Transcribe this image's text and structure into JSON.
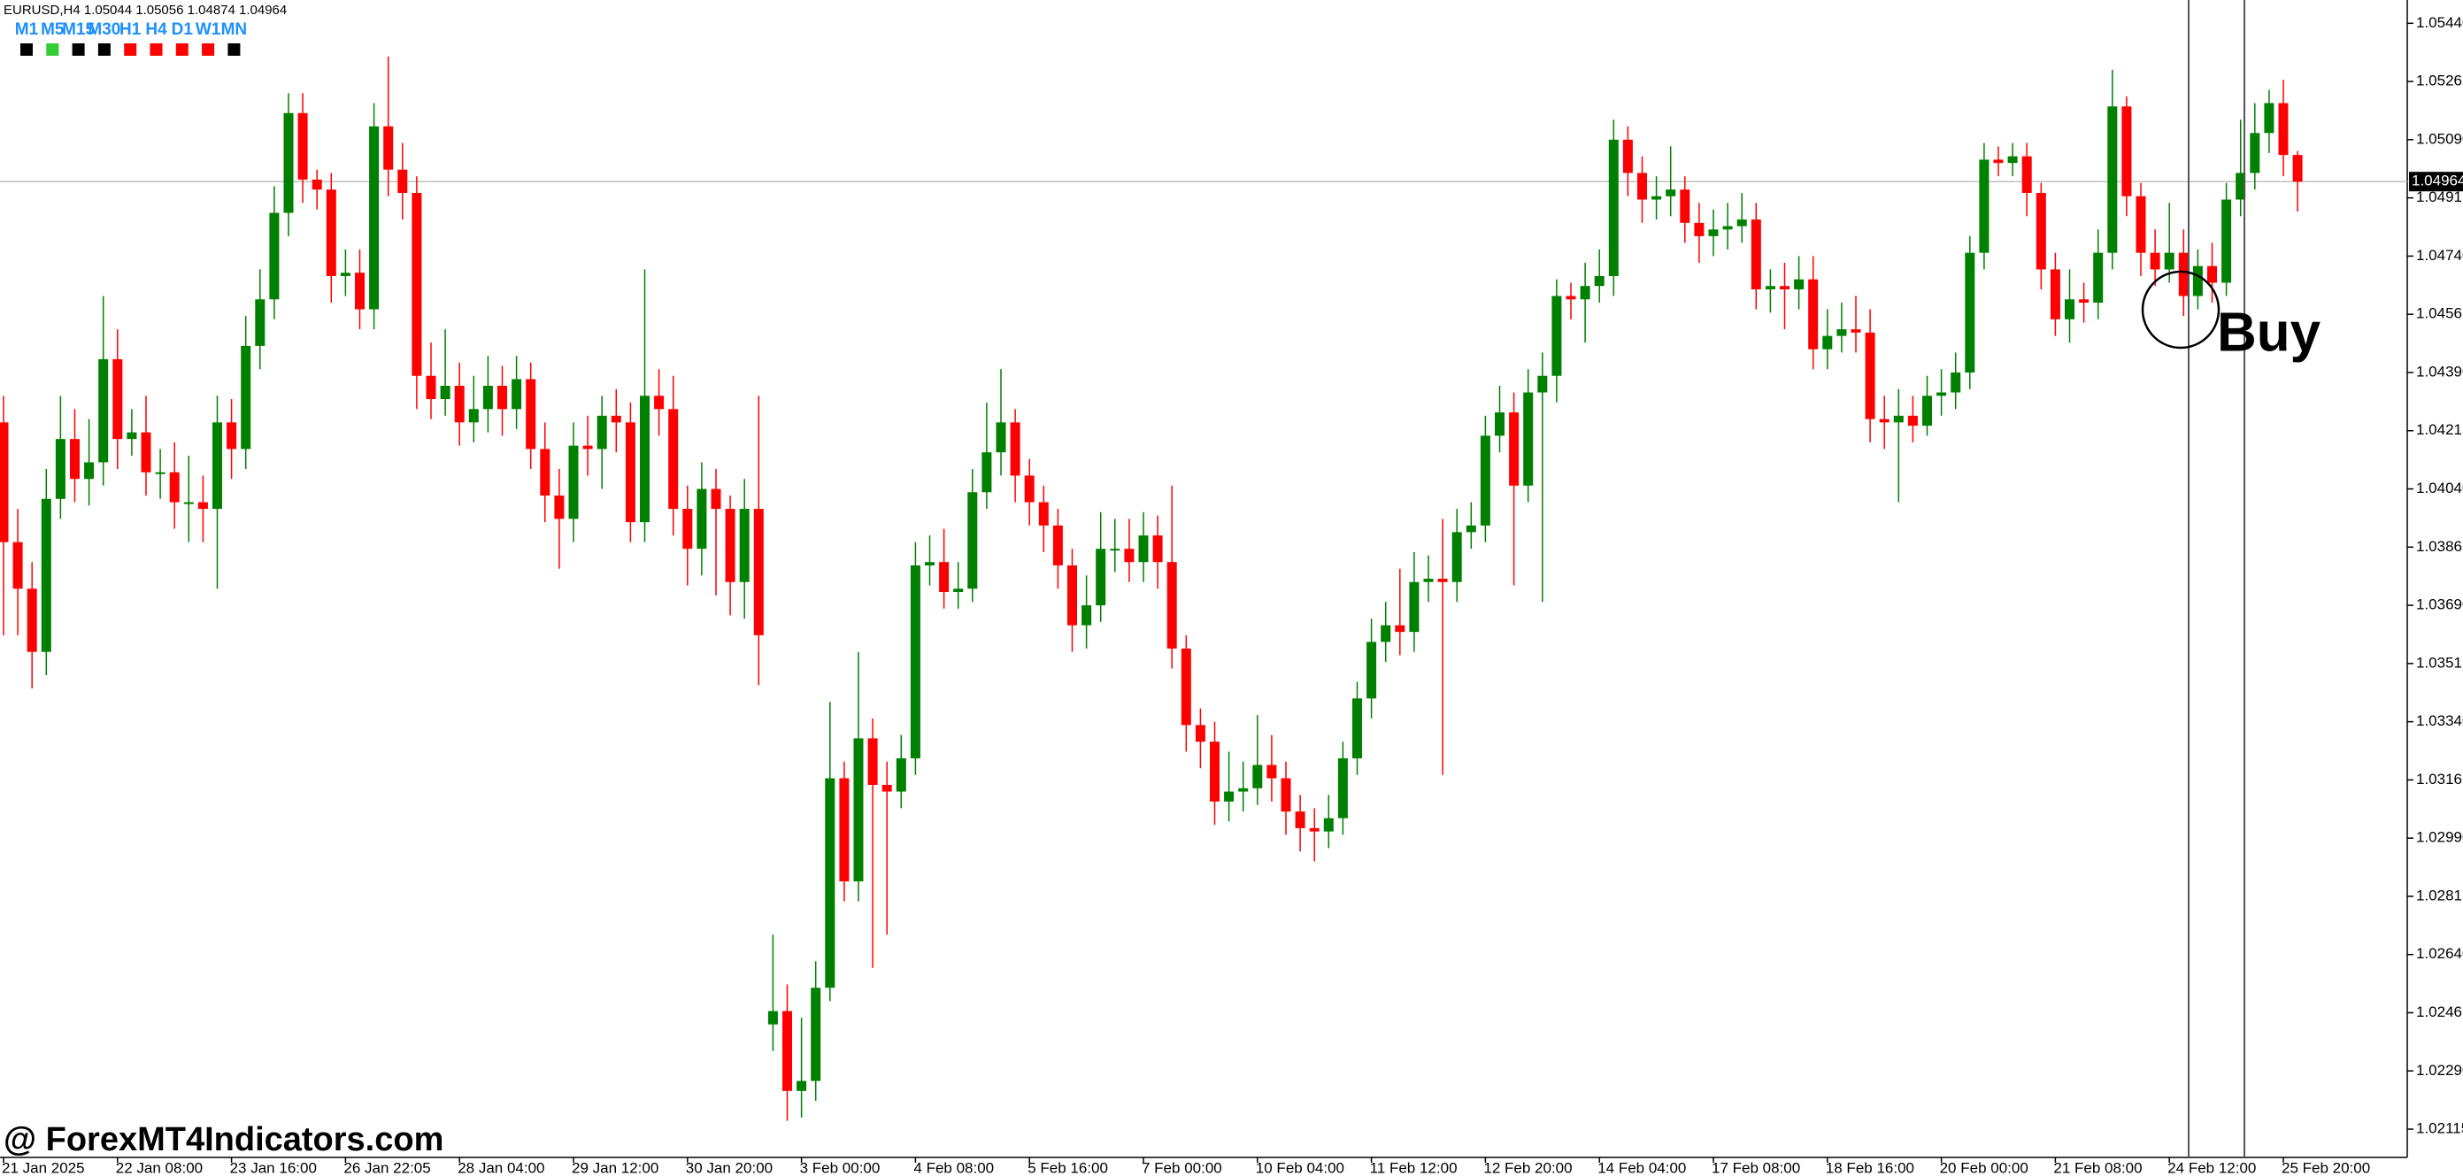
{
  "chart_data": {
    "type": "candlestick",
    "header": "EURUSD,H4  1.05044 1.05056 1.04874 1.04964",
    "timeframes": [
      {
        "label": "M1",
        "color": "#000000"
      },
      {
        "label": "M5",
        "color": "#32cd32"
      },
      {
        "label": "M15",
        "color": "#000000"
      },
      {
        "label": "M30",
        "color": "#000000"
      },
      {
        "label": "H1",
        "color": "#ff0000"
      },
      {
        "label": "H4",
        "color": "#ff0000"
      },
      {
        "label": "D1",
        "color": "#ff0000"
      },
      {
        "label": "W1",
        "color": "#ff0000"
      },
      {
        "label": "MN",
        "color": "#000000"
      }
    ],
    "timeframe_text_color": "#1e90ff",
    "watermark": "@ ForexMT4Indicators.com",
    "annotation": "Buy",
    "up_color": "#008000",
    "down_color": "#ff0000",
    "categories": [
      "21 Jan 2025",
      null,
      null,
      null,
      null,
      null,
      null,
      null,
      "22 Jan 08:00",
      null,
      null,
      null,
      null,
      null,
      null,
      null,
      "23 Jan 16:00",
      null,
      null,
      null,
      null,
      null,
      null,
      null,
      "26 Jan 22:05",
      null,
      null,
      null,
      null,
      null,
      null,
      null,
      "28 Jan 04:00",
      null,
      null,
      null,
      null,
      null,
      null,
      null,
      "29 Jan 12:00",
      null,
      null,
      null,
      null,
      null,
      null,
      null,
      "30 Jan 20:00",
      null,
      null,
      null,
      null,
      null,
      null,
      null,
      "3 Feb 00:00",
      null,
      null,
      null,
      null,
      null,
      null,
      null,
      "4 Feb 08:00",
      null,
      null,
      null,
      null,
      null,
      null,
      null,
      "5 Feb 16:00",
      null,
      null,
      null,
      null,
      null,
      null,
      null,
      "7 Feb 00:00",
      null,
      null,
      null,
      null,
      null,
      null,
      null,
      "10 Feb 04:00",
      null,
      null,
      null,
      null,
      null,
      null,
      null,
      "11 Feb 12:00",
      null,
      null,
      null,
      null,
      null,
      null,
      null,
      "12 Feb 20:00",
      null,
      null,
      null,
      null,
      null,
      null,
      null,
      "14 Feb 04:00",
      null,
      null,
      null,
      null,
      null,
      null,
      null,
      "17 Feb 08:00",
      null,
      null,
      null,
      null,
      null,
      null,
      null,
      "18 Feb 16:00",
      null,
      null,
      null,
      null,
      null,
      null,
      null,
      "20 Feb 00:00",
      null,
      null,
      null,
      null,
      null,
      null,
      null,
      "21 Feb 08:00",
      null,
      null,
      null,
      null,
      null,
      null,
      null,
      "24 Feb 12:00",
      null,
      null,
      null,
      null,
      null,
      null,
      null,
      "25 Feb 20:00",
      null
    ],
    "series": [
      {
        "open": [
          1.0424,
          1.0388,
          1.0374,
          1.0355,
          1.0401,
          1.0419,
          1.0407,
          1.0412,
          1.0443,
          1.0419,
          1.0421,
          1.0409,
          1.0409,
          1.04,
          1.04,
          1.0398,
          1.0424,
          1.0416,
          1.0447,
          1.0461,
          1.0487,
          1.0517,
          1.0497,
          1.0494,
          1.0468,
          1.0469,
          1.0458,
          1.0513,
          1.05,
          1.0493,
          1.0438,
          1.0431,
          1.0435,
          1.0424,
          1.0428,
          1.0435,
          1.0428,
          1.0437,
          1.0416,
          1.0402,
          1.0395,
          1.0417,
          1.0416,
          1.0426,
          1.0424,
          1.0394,
          1.0432,
          1.0428,
          1.0398,
          1.0386,
          1.0404,
          1.0398,
          1.0376,
          1.0398,
          1.0243,
          1.0247,
          1.0223,
          1.0226,
          1.0254,
          1.0317,
          1.0286,
          1.0329,
          1.0315,
          1.0313,
          1.0323,
          1.0381,
          1.0382,
          1.0373,
          1.0374,
          1.0403,
          1.0415,
          1.0424,
          1.0408,
          1.04,
          1.0393,
          1.0381,
          1.0363,
          1.0369,
          1.0386,
          1.0386,
          1.0382,
          1.039,
          1.0382,
          1.0356,
          1.0333,
          1.0328,
          1.031,
          1.0313,
          1.0314,
          1.0321,
          1.0317,
          1.0307,
          1.0302,
          1.0301,
          1.0305,
          1.0323,
          1.0341,
          1.0358,
          1.0363,
          1.0361,
          1.0376,
          1.0377,
          1.0376,
          1.0391,
          1.0393,
          1.042,
          1.0427,
          1.0405,
          1.0433,
          1.0438,
          1.0462,
          1.0461,
          1.0465,
          1.0468,
          1.0509,
          1.0499,
          1.0491,
          1.0492,
          1.0494,
          1.0484,
          1.048,
          1.0482,
          1.0483,
          1.0485,
          1.0464,
          1.0465,
          1.0464,
          1.0467,
          1.0446,
          1.045,
          1.0452,
          1.0451,
          1.0425,
          1.0424,
          1.0426,
          1.0423,
          1.0432,
          1.0433,
          1.0439,
          1.0475,
          1.0503,
          1.0502,
          1.0504,
          1.0493,
          1.047,
          1.0455,
          1.0461,
          1.046,
          1.0475,
          1.0519,
          1.0492,
          1.0475,
          1.047,
          1.0475,
          1.0462,
          1.0471,
          1.0466,
          1.0491,
          1.0499,
          1.0511,
          1.052,
          1.05044
        ],
        "high": [
          1.0432,
          1.0398,
          1.0382,
          1.041,
          1.0432,
          1.0428,
          1.0425,
          1.0462,
          1.0452,
          1.0428,
          1.0432,
          1.0416,
          1.0418,
          1.0414,
          1.0408,
          1.0432,
          1.0431,
          1.0456,
          1.047,
          1.0495,
          1.0523,
          1.0523,
          1.05,
          1.0499,
          1.0476,
          1.0476,
          1.052,
          1.0534,
          1.0508,
          1.0498,
          1.0448,
          1.0452,
          1.0442,
          1.0438,
          1.0444,
          1.0441,
          1.0444,
          1.0442,
          1.0424,
          1.041,
          1.0424,
          1.0426,
          1.0432,
          1.0434,
          1.043,
          1.047,
          1.044,
          1.0438,
          1.0405,
          1.0412,
          1.041,
          1.0402,
          1.0407,
          1.0432,
          1.027,
          1.0255,
          1.0245,
          1.0262,
          1.034,
          1.0322,
          1.0355,
          1.0335,
          1.0322,
          1.033,
          1.0388,
          1.039,
          1.0392,
          1.0382,
          1.041,
          1.043,
          1.044,
          1.0428,
          1.0413,
          1.0405,
          1.0398,
          1.0386,
          1.0378,
          1.0397,
          1.0395,
          1.0395,
          1.0397,
          1.0396,
          1.0405,
          1.036,
          1.0338,
          1.0334,
          1.0325,
          1.0322,
          1.0336,
          1.033,
          1.0322,
          1.0312,
          1.0308,
          1.0312,
          1.0328,
          1.0346,
          1.0365,
          1.037,
          1.038,
          1.0385,
          1.0384,
          1.0395,
          1.0398,
          1.04,
          1.0426,
          1.0435,
          1.0433,
          1.044,
          1.0445,
          1.0467,
          1.0466,
          1.0472,
          1.0476,
          1.0515,
          1.0513,
          1.0504,
          1.0498,
          1.0507,
          1.0498,
          1.049,
          1.0488,
          1.049,
          1.0493,
          1.049,
          1.047,
          1.0472,
          1.0474,
          1.0474,
          1.0458,
          1.046,
          1.0462,
          1.0458,
          1.0432,
          1.0434,
          1.0432,
          1.0438,
          1.044,
          1.0445,
          1.048,
          1.0508,
          1.0507,
          1.0508,
          1.0508,
          1.0496,
          1.0475,
          1.047,
          1.0466,
          1.0482,
          1.053,
          1.0522,
          1.0496,
          1.0482,
          1.049,
          1.0482,
          1.0476,
          1.0478,
          1.0496,
          1.0515,
          1.052,
          1.0524,
          1.0527,
          1.05056
        ],
        "low": [
          1.036,
          1.036,
          1.0344,
          1.0348,
          1.0395,
          1.04,
          1.0399,
          1.0405,
          1.041,
          1.0414,
          1.0402,
          1.0401,
          1.0392,
          1.0388,
          1.0388,
          1.0374,
          1.0407,
          1.041,
          1.044,
          1.0455,
          1.048,
          1.049,
          1.0488,
          1.046,
          1.0462,
          1.0452,
          1.0452,
          1.0492,
          1.0485,
          1.0428,
          1.0425,
          1.0426,
          1.0417,
          1.0418,
          1.0421,
          1.042,
          1.0422,
          1.041,
          1.0394,
          1.038,
          1.0388,
          1.0408,
          1.0404,
          1.0415,
          1.0388,
          1.0388,
          1.042,
          1.039,
          1.0375,
          1.0378,
          1.0372,
          1.0366,
          1.0365,
          1.0345,
          1.0235,
          1.0214,
          1.0215,
          1.022,
          1.025,
          1.028,
          1.028,
          1.026,
          1.027,
          1.0308,
          1.0318,
          1.0375,
          1.0368,
          1.0368,
          1.037,
          1.0398,
          1.0408,
          1.04,
          1.0393,
          1.0385,
          1.0374,
          1.0355,
          1.0356,
          1.0364,
          1.0379,
          1.0376,
          1.0376,
          1.0374,
          1.035,
          1.0325,
          1.032,
          1.0303,
          1.0304,
          1.0307,
          1.0309,
          1.031,
          1.03,
          1.0295,
          1.0292,
          1.0296,
          1.03,
          1.0318,
          1.0335,
          1.0352,
          1.0354,
          1.0355,
          1.037,
          1.0318,
          1.037,
          1.0386,
          1.0388,
          1.0415,
          1.0375,
          1.04,
          1.037,
          1.043,
          1.0455,
          1.0448,
          1.046,
          1.0462,
          1.0492,
          1.0484,
          1.0485,
          1.0486,
          1.0478,
          1.0472,
          1.0474,
          1.0476,
          1.0478,
          1.0458,
          1.0457,
          1.0452,
          1.0458,
          1.044,
          1.044,
          1.0445,
          1.0445,
          1.0418,
          1.0416,
          1.04,
          1.0418,
          1.042,
          1.0426,
          1.0428,
          1.0434,
          1.047,
          1.0498,
          1.0498,
          1.0486,
          1.0464,
          1.045,
          1.0448,
          1.0454,
          1.0455,
          1.047,
          1.0486,
          1.0468,
          1.0465,
          1.0466,
          1.0456,
          1.0458,
          1.046,
          1.0462,
          1.0486,
          1.0494,
          1.0505,
          1.0498,
          1.04874
        ],
        "close": [
          1.0388,
          1.0374,
          1.0355,
          1.0401,
          1.0419,
          1.0407,
          1.0412,
          1.0443,
          1.0419,
          1.0421,
          1.0409,
          1.0409,
          1.04,
          1.04,
          1.0398,
          1.0424,
          1.0416,
          1.0447,
          1.0461,
          1.0487,
          1.0517,
          1.0497,
          1.0494,
          1.0468,
          1.0469,
          1.0458,
          1.0513,
          1.05,
          1.0493,
          1.0438,
          1.0431,
          1.0435,
          1.0424,
          1.0428,
          1.0435,
          1.0428,
          1.0437,
          1.0416,
          1.0402,
          1.0395,
          1.0417,
          1.0416,
          1.0426,
          1.0424,
          1.0394,
          1.0432,
          1.0428,
          1.0398,
          1.0386,
          1.0404,
          1.0398,
          1.0376,
          1.0398,
          1.036,
          1.0247,
          1.0223,
          1.0226,
          1.0254,
          1.0317,
          1.0286,
          1.0329,
          1.0315,
          1.0313,
          1.0323,
          1.0381,
          1.0382,
          1.0373,
          1.0374,
          1.0403,
          1.0415,
          1.0424,
          1.0408,
          1.04,
          1.0393,
          1.0381,
          1.0363,
          1.0369,
          1.0386,
          1.0386,
          1.0382,
          1.039,
          1.0382,
          1.0356,
          1.0333,
          1.0328,
          1.031,
          1.0313,
          1.0314,
          1.0321,
          1.0317,
          1.0307,
          1.0302,
          1.0301,
          1.0305,
          1.0323,
          1.0341,
          1.0358,
          1.0363,
          1.0361,
          1.0376,
          1.0377,
          1.0376,
          1.0391,
          1.0393,
          1.042,
          1.0427,
          1.0405,
          1.0433,
          1.0438,
          1.0462,
          1.0461,
          1.0465,
          1.0468,
          1.0509,
          1.0499,
          1.0491,
          1.0492,
          1.0494,
          1.0484,
          1.048,
          1.0482,
          1.0483,
          1.0485,
          1.0464,
          1.0465,
          1.0464,
          1.0467,
          1.0446,
          1.045,
          1.0452,
          1.0451,
          1.0425,
          1.0424,
          1.0426,
          1.0423,
          1.0432,
          1.0433,
          1.0439,
          1.0475,
          1.0503,
          1.0502,
          1.0504,
          1.0493,
          1.047,
          1.0455,
          1.0461,
          1.046,
          1.0475,
          1.0519,
          1.0492,
          1.0475,
          1.047,
          1.0475,
          1.0462,
          1.0471,
          1.0466,
          1.0491,
          1.0499,
          1.0511,
          1.052,
          1.05044,
          1.04964
        ]
      }
    ],
    "ylim": [
      1.0203,
      1.0551
    ],
    "yticks": [
      {
        "value": 1.0544,
        "label": "1.05440"
      },
      1.05265,
      {
        "value": 1.0509,
        "label": "1.05090"
      },
      1.04915,
      {
        "value": 1.0474,
        "label": "1.04740"
      },
      1.04565,
      {
        "value": 1.0439,
        "label": "1.04390"
      },
      1.04215,
      {
        "value": 1.0404,
        "label": "1.04040"
      },
      1.03865,
      {
        "value": 1.0369,
        "label": "1.03690"
      },
      1.03515,
      {
        "value": 1.0334,
        "label": "1.03340"
      },
      1.03165,
      {
        "value": 1.0299,
        "label": "1.02990"
      },
      1.02815,
      {
        "value": 1.0264,
        "label": "1.02640"
      },
      1.02465,
      {
        "value": 1.0229,
        "label": "1.02290"
      },
      1.02115
    ],
    "current_price": 1.04964,
    "current_price_line_color": "#c0c0c0"
  }
}
